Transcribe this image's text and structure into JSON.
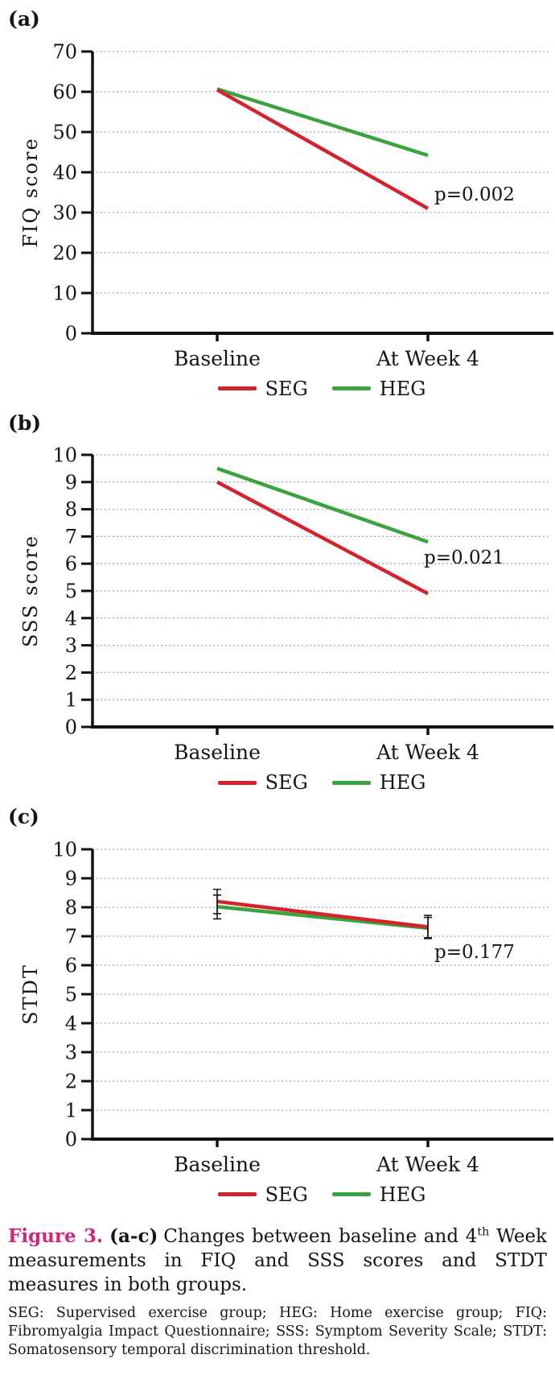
{
  "figure": {
    "caption": {
      "label": "Figure 3.",
      "label_color": "#d02578",
      "range": "(a-c)",
      "text_before_sup": "Changes between baseline and 4",
      "sup": "th",
      "text_after_sup": " Week measurements in FIQ and SSS scores and STDT measures in both groups.",
      "note": "SEG: Supervised exercise group; HEG: Home exercise group; FIQ: Fibromyalgia Impact Questionnaire; SSS: Symptom Severity Scale; STDT: Somatosensory temporal discrimination threshold."
    },
    "colors": {
      "seg": "#d4232a",
      "heg": "#3ba33e",
      "gridline": "#a8a8a8",
      "axis": "#111111"
    }
  },
  "chart_data": [
    {
      "id": "a",
      "panel_label": "(a)",
      "type": "line",
      "ylabel": "FIQ score",
      "categories": [
        "Baseline",
        "At Week 4"
      ],
      "ylim": [
        0,
        70
      ],
      "ytick_step": 10,
      "grid": "dotted-horizontal",
      "legend_position": "bottom",
      "series": [
        {
          "name": "SEG",
          "color_key": "seg",
          "values": [
            60.5,
            31.0
          ]
        },
        {
          "name": "HEG",
          "color_key": "heg",
          "values": [
            60.7,
            44.2
          ]
        }
      ],
      "annotation": {
        "text": "p=0.002",
        "y": 33.0,
        "x_offset": 8
      }
    },
    {
      "id": "b",
      "panel_label": "(b)",
      "type": "line",
      "ylabel": "SSS score",
      "categories": [
        "Baseline",
        "At Week 4"
      ],
      "ylim": [
        0,
        10
      ],
      "ytick_step": 1,
      "grid": "dotted-horizontal",
      "legend_position": "bottom",
      "series": [
        {
          "name": "SEG",
          "color_key": "seg",
          "values": [
            9.0,
            4.9
          ]
        },
        {
          "name": "HEG",
          "color_key": "heg",
          "values": [
            9.5,
            6.8
          ]
        }
      ],
      "annotation": {
        "text": "p=0.021",
        "y": 6.0,
        "x_offset": -5
      }
    },
    {
      "id": "c",
      "panel_label": "(c)",
      "type": "line",
      "ylabel": "STDT",
      "categories": [
        "Baseline",
        "At Week 4"
      ],
      "ylim": [
        0,
        10
      ],
      "ytick_step": 1,
      "grid": "dotted-horizontal",
      "legend_position": "bottom",
      "series": [
        {
          "name": "SEG",
          "color_key": "seg",
          "values": [
            8.2,
            7.32
          ],
          "errors": [
            {
              "low": 7.78,
              "high": 8.62
            },
            {
              "low": 6.95,
              "high": 7.72
            }
          ]
        },
        {
          "name": "HEG",
          "color_key": "heg",
          "values": [
            8.02,
            7.28
          ],
          "errors": [
            {
              "low": 7.6,
              "high": 8.42
            },
            {
              "low": 6.92,
              "high": 7.65
            }
          ]
        }
      ],
      "annotation": {
        "text": "p=0.177",
        "y": 6.25,
        "x_offset": 8
      }
    }
  ]
}
